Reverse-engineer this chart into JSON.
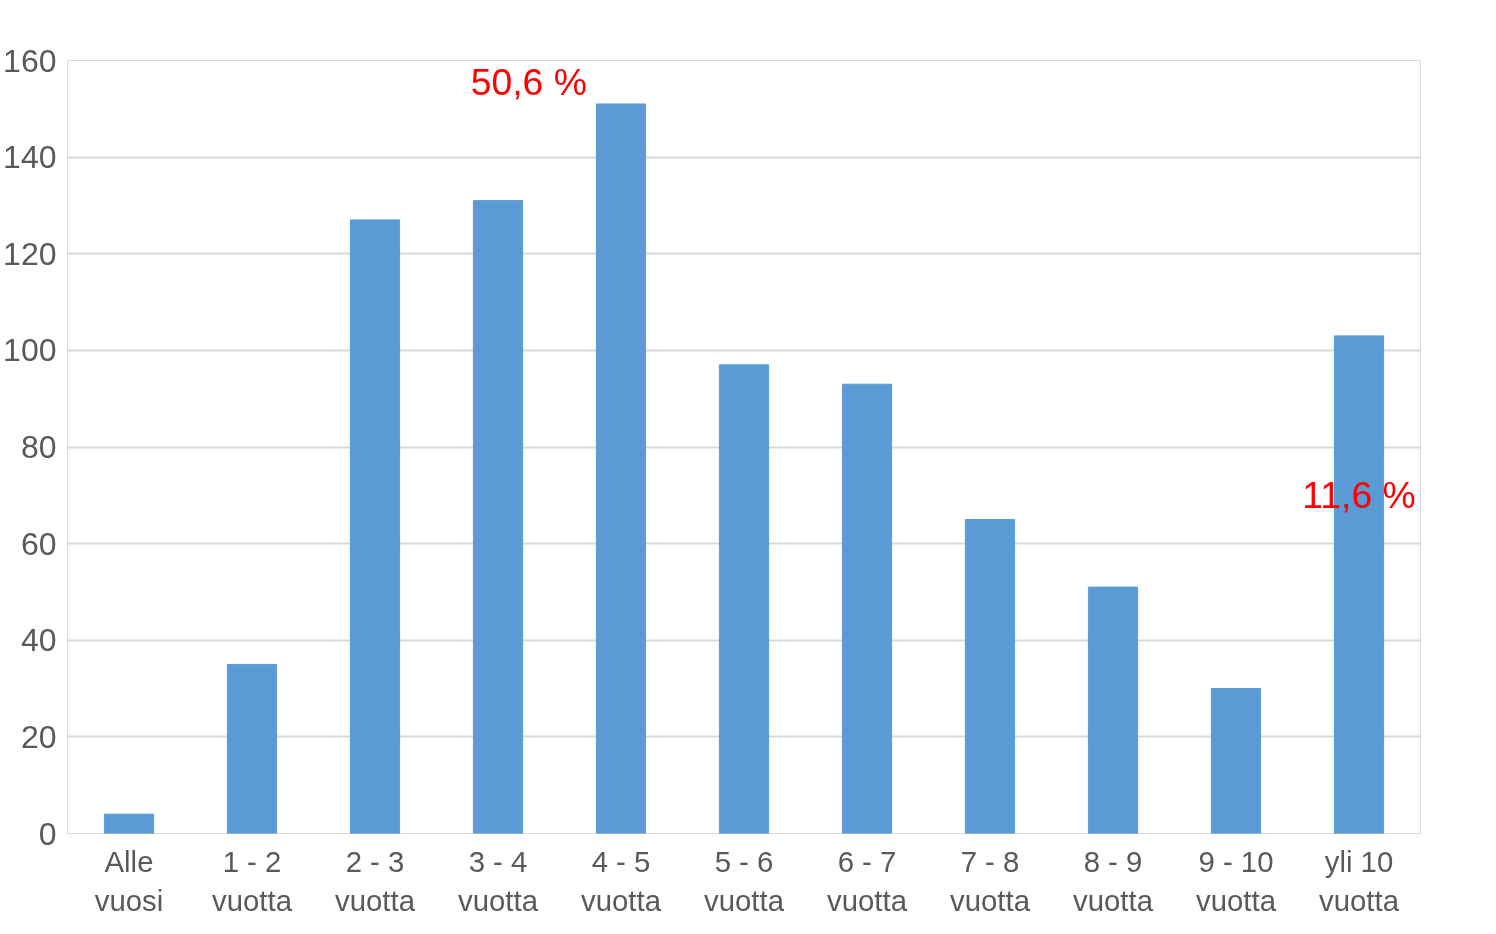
{
  "chart_data": {
    "type": "bar",
    "categories": [
      "Alle vuosi",
      "1 - 2 vuotta",
      "2 - 3 vuotta",
      "3 - 4 vuotta",
      "4 - 5 vuotta",
      "5 - 6 vuotta",
      "6 - 7 vuotta",
      "7 - 8 vuotta",
      "8 - 9 vuotta",
      "9 - 10 vuotta",
      "yli 10 vuotta"
    ],
    "values": [
      4,
      35,
      127,
      131,
      151,
      97,
      93,
      65,
      51,
      30,
      103
    ],
    "color": "#5b9bd5",
    "ylim": [
      0,
      160
    ],
    "yticks": [
      0,
      20,
      40,
      60,
      80,
      100,
      120,
      140,
      160
    ],
    "grid": "y",
    "annotations": [
      "50,6 %",
      "11,6 %"
    ]
  }
}
